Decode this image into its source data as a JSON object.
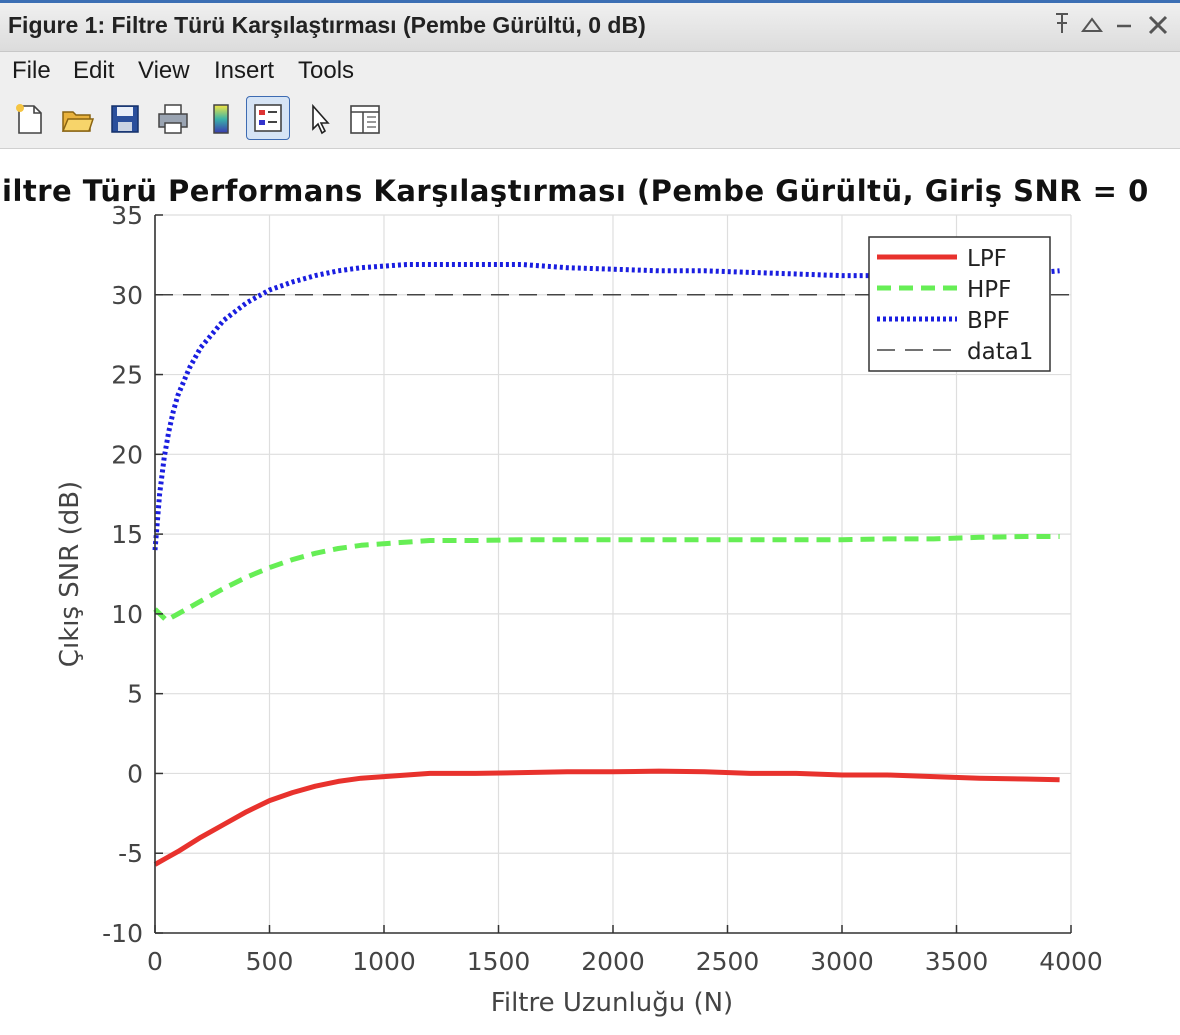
{
  "window": {
    "title": "Figure 1: Filtre Türü Karşılaştırması (Pembe Gürültü, 0 dB)",
    "controls": [
      "pin-icon",
      "maximize-icon",
      "minimize-icon",
      "close-icon"
    ]
  },
  "menu": {
    "file": "File",
    "edit": "Edit",
    "view": "View",
    "insert": "Insert",
    "tools": "Tools"
  },
  "toolbar": {
    "icons": [
      "new-figure-icon",
      "open-folder-icon",
      "save-icon",
      "print-icon",
      "colorbar-icon",
      "legend-icon",
      "pointer-icon",
      "property-editor-icon"
    ]
  },
  "chart_data": {
    "type": "line",
    "title": "iltre Türü Performans Karşılaştırması (Pembe Gürültü, Giriş SNR = 0",
    "xlabel": "Filtre Uzunluğu (N)",
    "ylabel": "Çıkış SNR (dB)",
    "xlim": [
      0,
      4000
    ],
    "ylim": [
      -10,
      35
    ],
    "xticks": [
      "0",
      "500",
      "1000",
      "1500",
      "2000",
      "2500",
      "3000",
      "3500",
      "4000"
    ],
    "yticks": [
      "-10",
      "-5",
      "0",
      "5",
      "10",
      "15",
      "20",
      "25",
      "30",
      "35"
    ],
    "grid": true,
    "legend_position": "top-right",
    "series": [
      {
        "name": "LPF",
        "color": "#e8322d",
        "style": "solid",
        "x": [
          0,
          50,
          100,
          200,
          300,
          400,
          500,
          600,
          700,
          800,
          900,
          1000,
          1100,
          1200,
          1400,
          1600,
          1800,
          2000,
          2200,
          2400,
          2600,
          2800,
          3000,
          3200,
          3400,
          3600,
          3800,
          3950
        ],
        "y": [
          -5.7,
          -5.3,
          -4.9,
          -4.0,
          -3.2,
          -2.4,
          -1.7,
          -1.2,
          -0.8,
          -0.5,
          -0.3,
          -0.2,
          -0.1,
          0.0,
          0.0,
          0.05,
          0.1,
          0.1,
          0.15,
          0.1,
          0.0,
          0.0,
          -0.1,
          -0.1,
          -0.2,
          -0.3,
          -0.35,
          -0.4
        ]
      },
      {
        "name": "HPF",
        "color": "#66ee55",
        "style": "dashed",
        "x": [
          0,
          50,
          100,
          200,
          300,
          400,
          500,
          600,
          700,
          800,
          900,
          1000,
          1100,
          1200,
          1400,
          1600,
          1800,
          2000,
          2200,
          2400,
          2600,
          2800,
          3000,
          3200,
          3400,
          3600,
          3800,
          3950
        ],
        "y": [
          10.3,
          9.6,
          10.0,
          10.8,
          11.6,
          12.3,
          12.9,
          13.4,
          13.8,
          14.1,
          14.3,
          14.4,
          14.5,
          14.6,
          14.6,
          14.65,
          14.65,
          14.65,
          14.65,
          14.65,
          14.65,
          14.65,
          14.65,
          14.7,
          14.7,
          14.8,
          14.85,
          14.85
        ]
      },
      {
        "name": "BPF",
        "color": "#1a1ee0",
        "style": "dotted",
        "x": [
          0,
          20,
          40,
          60,
          80,
          100,
          150,
          200,
          300,
          400,
          500,
          600,
          700,
          800,
          900,
          1000,
          1100,
          1200,
          1400,
          1600,
          1800,
          2000,
          2200,
          2400,
          2600,
          2800,
          3000,
          3200,
          3400,
          3600,
          3800,
          3950
        ],
        "y": [
          14.0,
          17.5,
          19.8,
          21.4,
          22.7,
          23.7,
          25.4,
          26.7,
          28.4,
          29.5,
          30.3,
          30.8,
          31.2,
          31.5,
          31.7,
          31.8,
          31.9,
          31.9,
          31.9,
          31.9,
          31.7,
          31.6,
          31.5,
          31.5,
          31.4,
          31.3,
          31.2,
          31.2,
          31.2,
          31.2,
          31.3,
          31.5
        ]
      },
      {
        "name": "data1",
        "color": "#444444",
        "style": "longdash",
        "x": [
          0,
          4000
        ],
        "y": [
          30,
          30
        ]
      }
    ]
  }
}
